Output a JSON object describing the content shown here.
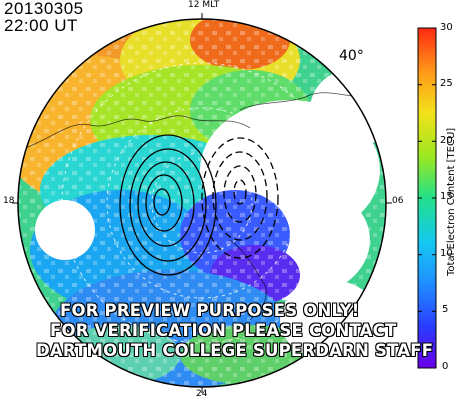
{
  "header": {
    "date": "20130305",
    "time": "22:00 UT"
  },
  "clock_labels": {
    "top": "12 MLT",
    "left": "18",
    "right": "06",
    "bottom": "24"
  },
  "latitude_label": "40°",
  "colorbar": {
    "title": "Total Electron Content [TECU]",
    "min": 0,
    "max": 30,
    "ticks": [
      "0",
      "5",
      "10",
      "15",
      "20",
      "25",
      "30"
    ],
    "tick_values": [
      0,
      5,
      10,
      15,
      20,
      25,
      30
    ]
  },
  "watermark": [
    "FOR PREVIEW PURPOSES ONLY!",
    "FOR VERIFICATION PLEASE CONTACT",
    "DARTMOUTH COLLEGE SUPERDARN STAFF"
  ],
  "colors": {
    "frame": "#000000",
    "background": "#ffffff",
    "contour_positive": "#000000",
    "contour_negative": "#000000"
  }
}
